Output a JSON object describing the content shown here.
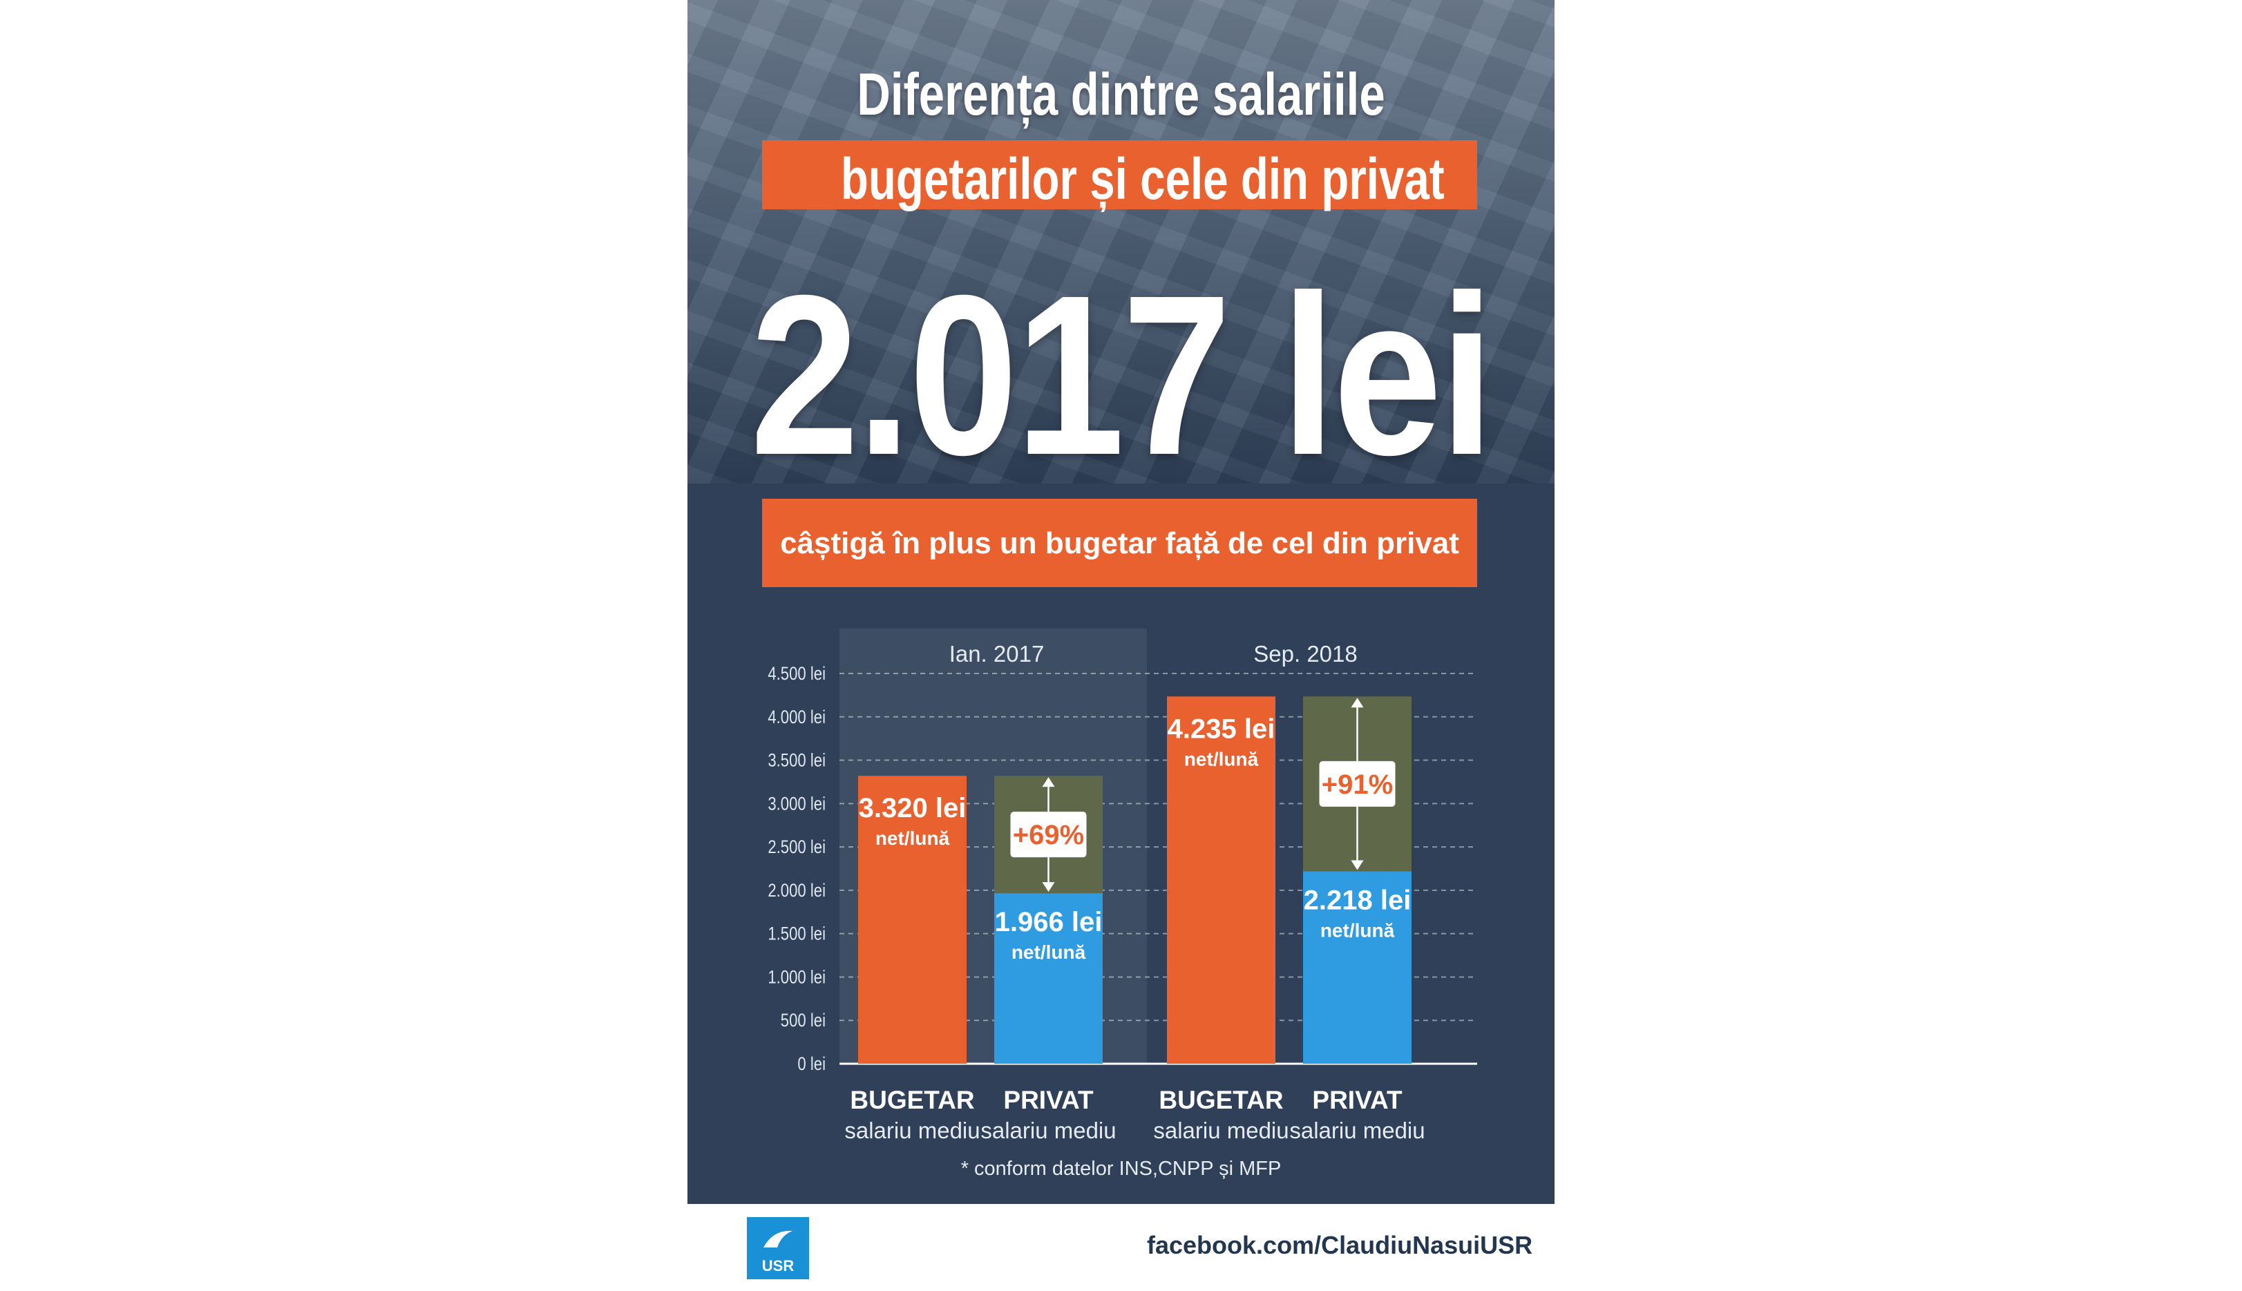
{
  "title_line1": "Diferența dintre salariile",
  "title_line2": "bugetarilor și cele din privat",
  "headline_value": "2.017 lei",
  "headline_caption": "câștigă în plus un bugetar față de cel din privat",
  "footnote": "* conform datelor INS,CNPP și MFP",
  "footer": {
    "logo_text": "USR",
    "link": "facebook.com/ClaudiuNasuiUSR"
  },
  "colors": {
    "background": "#2f4058",
    "bugetar": "#e8612e",
    "privat": "#2f9be0",
    "gap": "#5f6848",
    "accent": "#e8612e"
  },
  "chart_data": {
    "type": "bar",
    "groups": [
      "Ian. 2017",
      "Sep. 2018"
    ],
    "categories": [
      "BUGETAR",
      "PRIVAT"
    ],
    "category_sublabel": "salariu mediu",
    "y_ticks": [
      "0 lei",
      "500 lei",
      "1.000 lei",
      "1.500 lei",
      "2.000 lei",
      "2.500 lei",
      "3.000 lei",
      "3.500 lei",
      "4.000 lei",
      "4.500 lei"
    ],
    "ylim": [
      0,
      4500
    ],
    "highlighted_group": "Ian. 2017",
    "grid": true,
    "bars": [
      {
        "group": "Ian. 2017",
        "category": "BUGETAR",
        "value": 3320,
        "label": "3.320 lei",
        "unit": "net/lună"
      },
      {
        "group": "Ian. 2017",
        "category": "PRIVAT",
        "value": 1966,
        "label": "1.966 lei",
        "unit": "net/lună",
        "gap_to": 3320,
        "gap_label": "+69%"
      },
      {
        "group": "Sep. 2018",
        "category": "BUGETAR",
        "value": 4235,
        "label": "4.235 lei",
        "unit": "net/lună"
      },
      {
        "group": "Sep. 2018",
        "category": "PRIVAT",
        "value": 2218,
        "label": "2.218 lei",
        "unit": "net/lună",
        "gap_to": 4235,
        "gap_label": "+91%"
      }
    ]
  }
}
